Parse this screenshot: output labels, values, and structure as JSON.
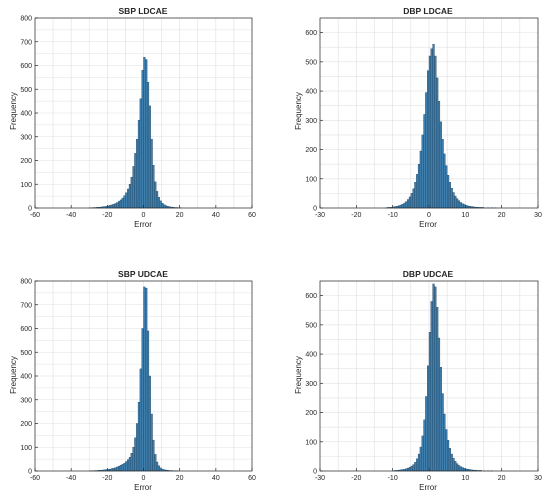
{
  "figure": {
    "colors": {
      "bar_fill": "#3f7fae",
      "bar_edge": "#1d3f5a",
      "grid": "#e0e0e0",
      "axis": "#262626"
    }
  },
  "chart_data": [
    {
      "type": "bar",
      "title": "SBP LDCAE",
      "xlabel": "Error",
      "ylabel": "Frequency",
      "xlim": [
        -60,
        60
      ],
      "ylim": [
        0,
        800
      ],
      "xticks": [
        -60,
        -40,
        -20,
        0,
        20,
        40,
        60
      ],
      "yticks": [
        0,
        100,
        200,
        300,
        400,
        500,
        600,
        700,
        800
      ],
      "grid": true,
      "bin_width": 1,
      "bins": [
        [
          -30,
          1
        ],
        [
          -29,
          1
        ],
        [
          -28,
          2
        ],
        [
          -27,
          2
        ],
        [
          -26,
          3
        ],
        [
          -25,
          3
        ],
        [
          -24,
          4
        ],
        [
          -23,
          5
        ],
        [
          -22,
          6
        ],
        [
          -21,
          7
        ],
        [
          -20,
          9
        ],
        [
          -19,
          11
        ],
        [
          -18,
          13
        ],
        [
          -17,
          16
        ],
        [
          -16,
          19
        ],
        [
          -15,
          23
        ],
        [
          -14,
          28
        ],
        [
          -13,
          34
        ],
        [
          -12,
          42
        ],
        [
          -11,
          52
        ],
        [
          -10,
          64
        ],
        [
          -9,
          80
        ],
        [
          -8,
          100
        ],
        [
          -7,
          130
        ],
        [
          -6,
          175
        ],
        [
          -5,
          230
        ],
        [
          -4,
          290
        ],
        [
          -3,
          370
        ],
        [
          -2,
          460
        ],
        [
          -1,
          580
        ],
        [
          0,
          635
        ],
        [
          1,
          625
        ],
        [
          2,
          530
        ],
        [
          3,
          430
        ],
        [
          4,
          290
        ],
        [
          5,
          180
        ],
        [
          6,
          110
        ],
        [
          7,
          70
        ],
        [
          8,
          45
        ],
        [
          9,
          30
        ],
        [
          10,
          20
        ],
        [
          11,
          14
        ],
        [
          12,
          10
        ],
        [
          13,
          7
        ],
        [
          14,
          5
        ],
        [
          15,
          4
        ],
        [
          16,
          3
        ],
        [
          17,
          2
        ],
        [
          18,
          2
        ],
        [
          19,
          1
        ],
        [
          20,
          1
        ]
      ]
    },
    {
      "type": "bar",
      "title": "DBP LDCAE",
      "xlabel": "Error",
      "ylabel": "Frequency",
      "xlim": [
        -30,
        30
      ],
      "ylim": [
        0,
        650
      ],
      "xticks": [
        -30,
        -20,
        -10,
        0,
        10,
        20,
        30
      ],
      "yticks": [
        0,
        100,
        200,
        300,
        400,
        500,
        600
      ],
      "grid": true,
      "bin_width": 0.5,
      "bins": [
        [
          -12,
          1
        ],
        [
          -11.5,
          2
        ],
        [
          -11,
          2
        ],
        [
          -10.5,
          3
        ],
        [
          -10,
          4
        ],
        [
          -9.5,
          5
        ],
        [
          -9,
          6
        ],
        [
          -8.5,
          8
        ],
        [
          -8,
          10
        ],
        [
          -7.5,
          13
        ],
        [
          -7,
          17
        ],
        [
          -6.5,
          22
        ],
        [
          -6,
          29
        ],
        [
          -5.5,
          38
        ],
        [
          -5,
          50
        ],
        [
          -4.5,
          66
        ],
        [
          -4,
          88
        ],
        [
          -3.5,
          115
        ],
        [
          -3,
          150
        ],
        [
          -2.5,
          195
        ],
        [
          -2,
          250
        ],
        [
          -1.5,
          320
        ],
        [
          -1,
          395
        ],
        [
          -0.5,
          470
        ],
        [
          0,
          520
        ],
        [
          0.5,
          545
        ],
        [
          1,
          560
        ],
        [
          1.5,
          520
        ],
        [
          2,
          445
        ],
        [
          2.5,
          365
        ],
        [
          3,
          295
        ],
        [
          3.5,
          235
        ],
        [
          4,
          185
        ],
        [
          4.5,
          145
        ],
        [
          5,
          112
        ],
        [
          5.5,
          88
        ],
        [
          6,
          68
        ],
        [
          6.5,
          53
        ],
        [
          7,
          41
        ],
        [
          7.5,
          32
        ],
        [
          8,
          25
        ],
        [
          8.5,
          19
        ],
        [
          9,
          15
        ],
        [
          9.5,
          12
        ],
        [
          10,
          9
        ],
        [
          10.5,
          7
        ],
        [
          11,
          6
        ],
        [
          11.5,
          5
        ],
        [
          12,
          4
        ],
        [
          12.5,
          3
        ],
        [
          13,
          3
        ],
        [
          13.5,
          2
        ],
        [
          14,
          2
        ],
        [
          14.5,
          2
        ],
        [
          15,
          1
        ],
        [
          16,
          1
        ],
        [
          17,
          1
        ],
        [
          18,
          1
        ]
      ]
    },
    {
      "type": "bar",
      "title": "SBP UDCAE",
      "xlabel": "Error",
      "ylabel": "Frequency",
      "xlim": [
        -60,
        60
      ],
      "ylim": [
        0,
        800
      ],
      "xticks": [
        -60,
        -40,
        -20,
        0,
        20,
        40,
        60
      ],
      "yticks": [
        0,
        100,
        200,
        300,
        400,
        500,
        600,
        700,
        800
      ],
      "grid": true,
      "bin_width": 1,
      "bins": [
        [
          -30,
          1
        ],
        [
          -29,
          1
        ],
        [
          -28,
          1
        ],
        [
          -27,
          2
        ],
        [
          -26,
          2
        ],
        [
          -25,
          3
        ],
        [
          -24,
          3
        ],
        [
          -23,
          4
        ],
        [
          -22,
          5
        ],
        [
          -21,
          6
        ],
        [
          -20,
          7
        ],
        [
          -19,
          8
        ],
        [
          -18,
          10
        ],
        [
          -17,
          12
        ],
        [
          -16,
          14
        ],
        [
          -15,
          17
        ],
        [
          -14,
          20
        ],
        [
          -13,
          24
        ],
        [
          -12,
          28
        ],
        [
          -11,
          33
        ],
        [
          -10,
          40
        ],
        [
          -9,
          48
        ],
        [
          -8,
          58
        ],
        [
          -7,
          75
        ],
        [
          -6,
          100
        ],
        [
          -5,
          140
        ],
        [
          -4,
          200
        ],
        [
          -3,
          290
        ],
        [
          -2,
          430
        ],
        [
          -1,
          600
        ],
        [
          0,
          775
        ],
        [
          1,
          770
        ],
        [
          2,
          590
        ],
        [
          3,
          400
        ],
        [
          4,
          240
        ],
        [
          5,
          130
        ],
        [
          6,
          70
        ],
        [
          7,
          38
        ],
        [
          8,
          22
        ],
        [
          9,
          13
        ],
        [
          10,
          8
        ],
        [
          11,
          5
        ],
        [
          12,
          4
        ],
        [
          13,
          3
        ],
        [
          14,
          2
        ],
        [
          15,
          2
        ],
        [
          16,
          1
        ],
        [
          17,
          1
        ],
        [
          18,
          1
        ]
      ]
    },
    {
      "type": "bar",
      "title": "DBP UDCAE",
      "xlabel": "Error",
      "ylabel": "Frequency",
      "xlim": [
        -30,
        30
      ],
      "ylim": [
        0,
        650
      ],
      "xticks": [
        -30,
        -20,
        -10,
        0,
        10,
        20,
        30
      ],
      "yticks": [
        0,
        100,
        200,
        300,
        400,
        500,
        600
      ],
      "grid": true,
      "bin_width": 0.5,
      "bins": [
        [
          -10,
          1
        ],
        [
          -9.5,
          2
        ],
        [
          -9,
          2
        ],
        [
          -8.5,
          3
        ],
        [
          -8,
          4
        ],
        [
          -7.5,
          5
        ],
        [
          -7,
          6
        ],
        [
          -6.5,
          8
        ],
        [
          -6,
          10
        ],
        [
          -5.5,
          13
        ],
        [
          -5,
          17
        ],
        [
          -4.5,
          22
        ],
        [
          -4,
          30
        ],
        [
          -3.5,
          42
        ],
        [
          -3,
          58
        ],
        [
          -2.5,
          82
        ],
        [
          -2,
          120
        ],
        [
          -1.5,
          175
        ],
        [
          -1,
          255
        ],
        [
          -0.5,
          360
        ],
        [
          0,
          475
        ],
        [
          0.5,
          580
        ],
        [
          1,
          640
        ],
        [
          1.5,
          630
        ],
        [
          2,
          560
        ],
        [
          2.5,
          455
        ],
        [
          3,
          355
        ],
        [
          3.5,
          265
        ],
        [
          4,
          195
        ],
        [
          4.5,
          142
        ],
        [
          5,
          105
        ],
        [
          5.5,
          78
        ],
        [
          6,
          58
        ],
        [
          6.5,
          44
        ],
        [
          7,
          33
        ],
        [
          7.5,
          25
        ],
        [
          8,
          19
        ],
        [
          8.5,
          15
        ],
        [
          9,
          12
        ],
        [
          9.5,
          9
        ],
        [
          10,
          7
        ],
        [
          10.5,
          6
        ],
        [
          11,
          5
        ],
        [
          11.5,
          4
        ],
        [
          12,
          3
        ],
        [
          12.5,
          3
        ],
        [
          13,
          2
        ],
        [
          13.5,
          2
        ],
        [
          14,
          2
        ],
        [
          15,
          1
        ],
        [
          16,
          1
        ],
        [
          17,
          1
        ]
      ]
    }
  ]
}
